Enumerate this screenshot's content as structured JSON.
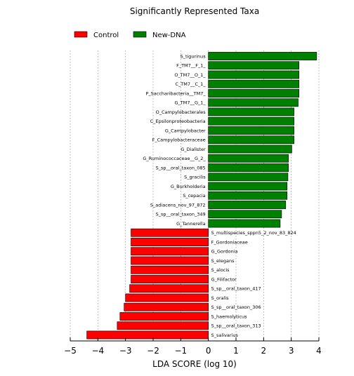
{
  "chart_data": {
    "type": "bar",
    "orientation": "horizontal",
    "title": "Significantly Represented Taxa",
    "xlabel": "LDA SCORE (log 10)",
    "ylabel": "",
    "xlim": [
      -5,
      4
    ],
    "xticks": [
      -5,
      -4,
      -3,
      -2,
      -1,
      0,
      1,
      2,
      3,
      4
    ],
    "xtick_labels": [
      "−5",
      "−4",
      "−3",
      "−2",
      "−1",
      "0",
      "1",
      "2",
      "3",
      "4"
    ],
    "grid": "vertical dotted",
    "legend_position": "top-left",
    "series": [
      {
        "name": "Control",
        "color": "#ff0000",
        "categories": [
          "S_multispecies_sppn5_2_nov_83_824",
          "F_Gordoniaceae",
          "G_Gordonia",
          "S_elegans",
          "S_alocis",
          "G_Filifactor",
          "S_sp__oral_taxon_417",
          "S_oralis",
          "S_sp__oral_taxon_306",
          "S_haemolyticus",
          "S_sp__oral_taxon_313",
          "S_salivarius"
        ],
        "values": [
          -2.8,
          -2.8,
          -2.8,
          -2.8,
          -2.8,
          -2.8,
          -2.85,
          -3.0,
          -3.05,
          -3.2,
          -3.3,
          -4.4
        ]
      },
      {
        "name": "New-DNA",
        "color": "#008000",
        "categories": [
          "S_tigurinus",
          "F_TM7__F_1_",
          "O_TM7__O_1_",
          "C_TM7__C_1_",
          "P_Saccharibacteria__TM7_",
          "G_TM7__G_1_",
          "O_Campylobacterales",
          "C_Epsilonproteobacteria",
          "G_Campylobacter",
          "F_Campylobacteraceae",
          "G_Dialister",
          "G_Ruminococcaceae__G_2_",
          "S_sp__oral_taxon_085",
          "S_gracilis",
          "G_Burkholderia",
          "S_cepacia",
          "S_adiacens_nov_97_872",
          "S_sp__oral_taxon_349",
          "G_Tannerella"
        ],
        "values": [
          3.92,
          3.28,
          3.28,
          3.28,
          3.28,
          3.25,
          3.1,
          3.1,
          3.1,
          3.1,
          3.02,
          2.9,
          2.9,
          2.88,
          2.85,
          2.85,
          2.8,
          2.65,
          2.6
        ]
      }
    ]
  }
}
